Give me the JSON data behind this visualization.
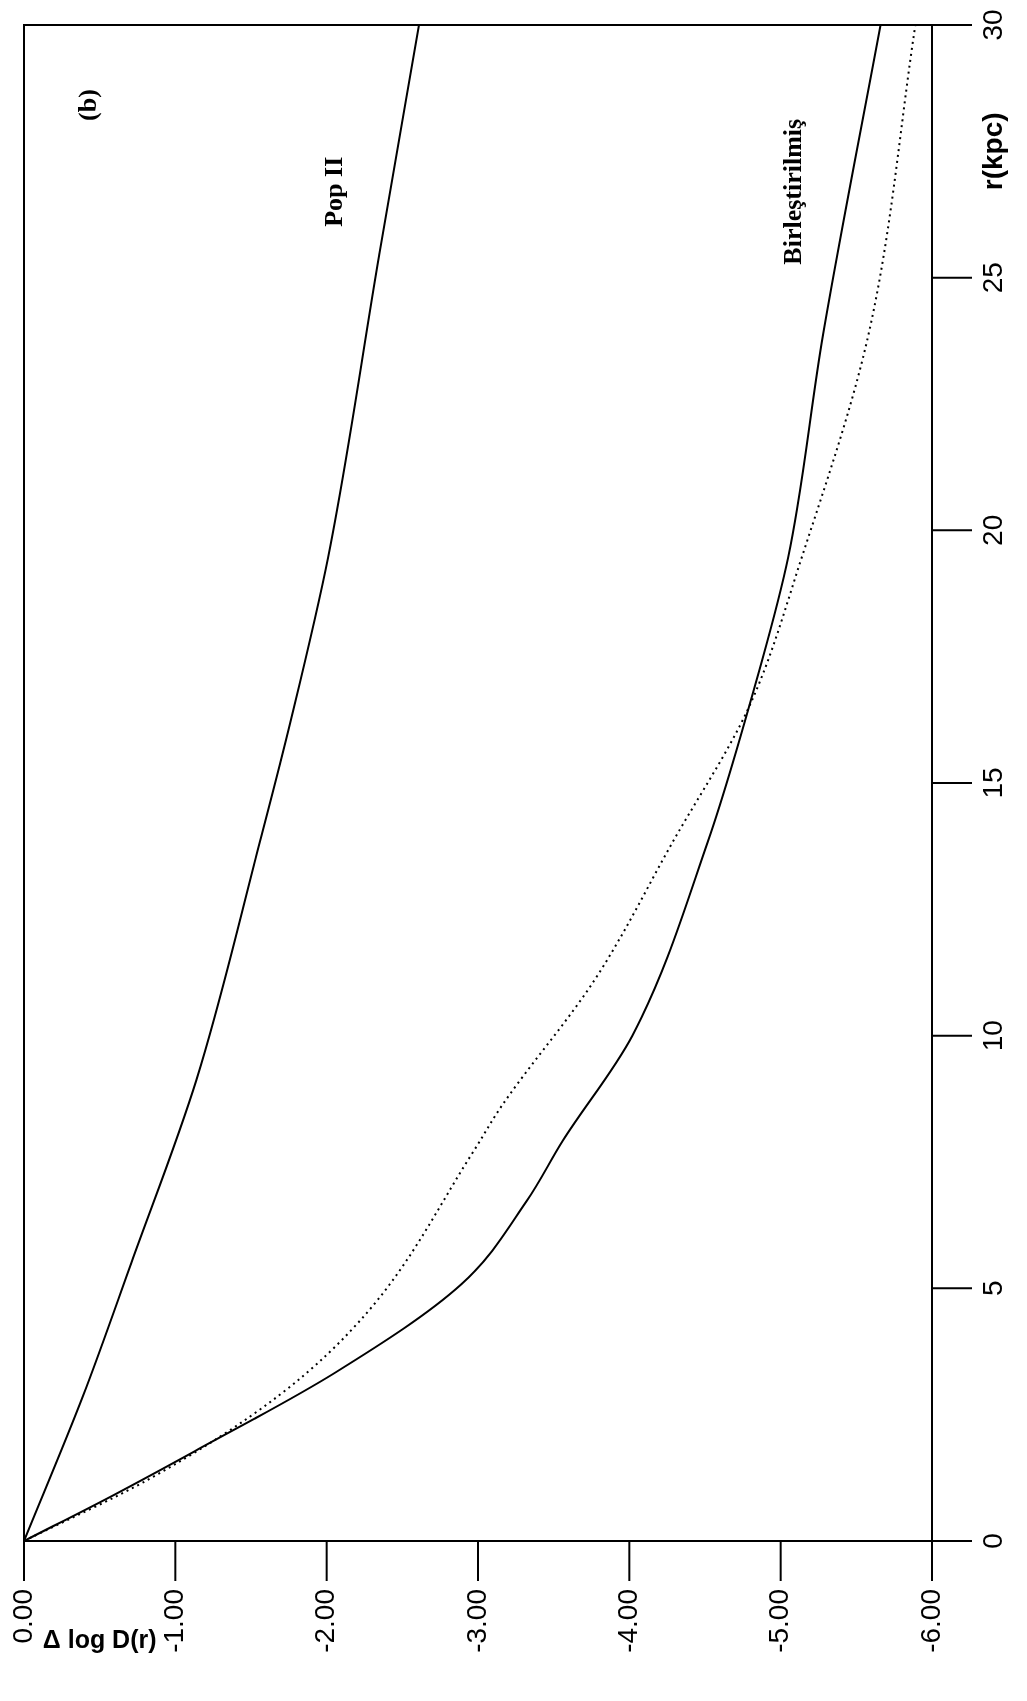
{
  "chart_data": {
    "type": "line",
    "xlabel": "Δ log D(r)",
    "ylabel": "r(kpc)",
    "annotations": [
      "(b)"
    ],
    "series": [
      {
        "name": "Pop II",
        "color": "#000000",
        "line_style": "solid",
        "x": [
          0,
          -0.39,
          -0.71,
          -1.14,
          -1.56,
          -1.76,
          -2.01,
          -2.35,
          -2.61
        ],
        "values": [
          0,
          2.87,
          5.51,
          9.13,
          13.85,
          16.2,
          19.47,
          25.5,
          30
        ]
      },
      {
        "name": "Birleştirilmiş",
        "color": "#000000",
        "line_style": "solid",
        "x": [
          0,
          -0.58,
          -1.13,
          -2.05,
          -2.89,
          -3.32,
          -3.56,
          -4.02,
          -4.52,
          -4.79,
          -5.05,
          -5.28,
          -5.66
        ],
        "values": [
          0,
          0.89,
          1.78,
          3.32,
          5.08,
          6.72,
          7.92,
          10,
          13.85,
          16.5,
          19.47,
          23.87,
          30
        ]
      },
      {
        "color": "#000000",
        "line_style": "dotted",
        "x": [
          0,
          -0.83,
          -1.68,
          -2.27,
          -2.97,
          -3.15,
          -3.77,
          -4.29,
          -4.79,
          -5.14,
          -5.58,
          -5.89
        ],
        "values": [
          0,
          1.23,
          2.87,
          4.53,
          7.71,
          8.58,
          11.1,
          13.85,
          16.5,
          19.47,
          23.87,
          30
        ]
      }
    ],
    "xlim": [
      0,
      -6
    ],
    "xticks": [
      {
        "value": 0,
        "label": "0.00"
      },
      {
        "value": -1,
        "label": "-1.00"
      },
      {
        "value": -2,
        "label": "-2.00"
      },
      {
        "value": -3,
        "label": "-3.00"
      },
      {
        "value": -4,
        "label": "-4.00"
      },
      {
        "value": -5,
        "label": "-5.00"
      },
      {
        "value": -6,
        "label": "-6.00"
      }
    ],
    "ylim": [
      0,
      30
    ],
    "yticks": [
      0,
      5,
      10,
      15,
      20,
      25,
      30
    ],
    "grid": false,
    "legend": false,
    "marker": "none"
  }
}
